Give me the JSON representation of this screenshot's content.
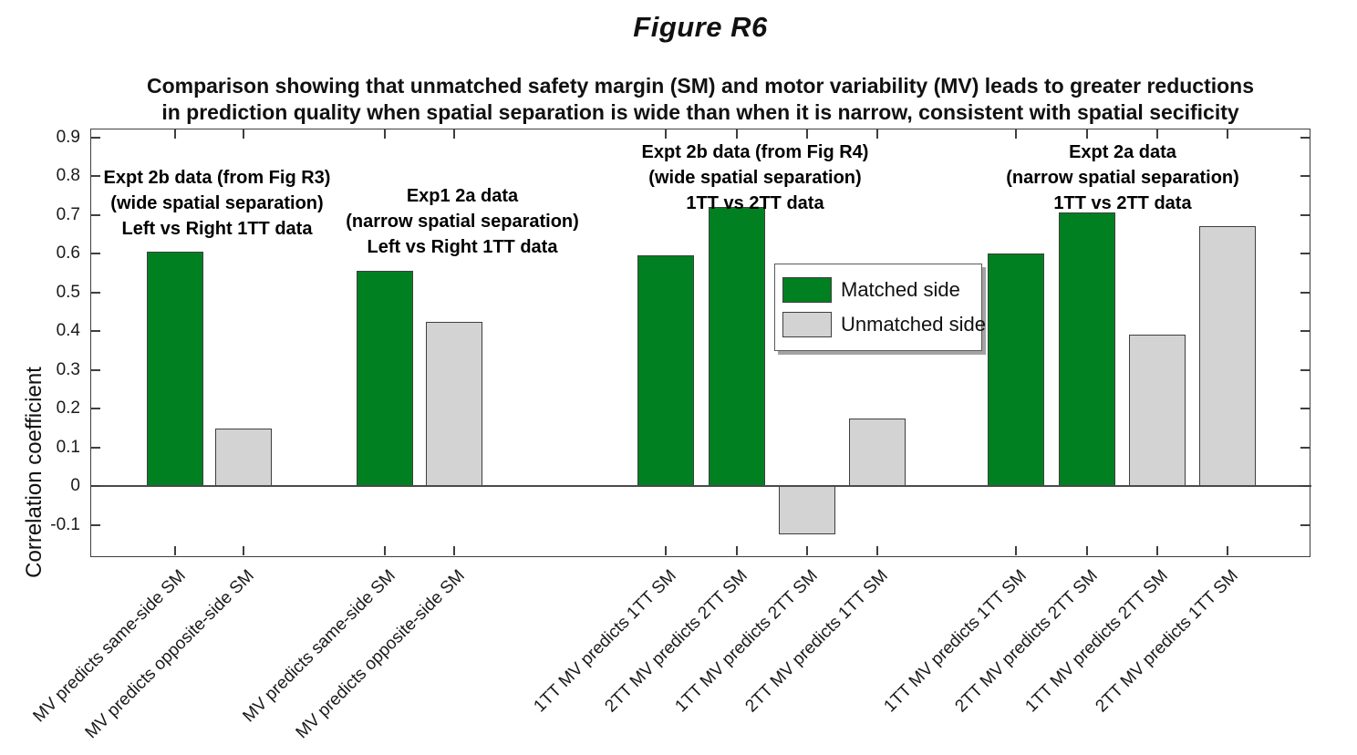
{
  "figure_title": "Figure R6",
  "subtitle": {
    "line1": "Comparison showing that unmatched safety margin (SM) and motor variability (MV) leads to greater reductions",
    "line2": "in prediction quality when spatial separation is wide than when it is narrow, consistent with spatial secificity"
  },
  "y_axis": {
    "label": "Correlation coefficient",
    "tick_labels": [
      "0.9",
      "0.8",
      "0.7",
      "0.6",
      "0.5",
      "0.4",
      "0.3",
      "0.2",
      "0.1",
      "0",
      "-0.1"
    ]
  },
  "legend": {
    "items": [
      {
        "label": "Matched side",
        "color": "#008021"
      },
      {
        "label": "Unmatched side",
        "color": "#d3d3d3"
      }
    ]
  },
  "chart_data": {
    "type": "bar",
    "title": "Figure R6",
    "subtitle": "Comparison showing that unmatched safety margin (SM) and motor variability (MV) leads to greater reductions in prediction quality when spatial separation is wide than when it is narrow, consistent with spatial secificity",
    "xlabel": "",
    "ylabel": "Correlation coefficient",
    "ylim": [
      -0.185,
      0.92
    ],
    "yticks": [
      0.9,
      0.8,
      0.7,
      0.6,
      0.5,
      0.4,
      0.3,
      0.2,
      0.1,
      0,
      -0.1
    ],
    "grid": false,
    "legend_position": "inside-center-right",
    "series_colors": {
      "Matched side": "#008021",
      "Unmatched side": "#d3d3d3"
    },
    "groups": [
      {
        "annotation": [
          "Expt 2b data (from Fig R3)",
          "(wide spatial separation)",
          "Left vs Right 1TT data"
        ],
        "bars": [
          {
            "category": "MV predicts same-side SM",
            "series": "Matched side",
            "value": 0.605
          },
          {
            "category": "MV predicts opposite-side SM",
            "series": "Unmatched side",
            "value": 0.15
          }
        ]
      },
      {
        "annotation": [
          "Exp1 2a data",
          "(narrow spatial separation)",
          "Left vs Right 1TT data"
        ],
        "bars": [
          {
            "category": "MV predicts same-side SM",
            "series": "Matched side",
            "value": 0.555
          },
          {
            "category": "MV predicts opposite-side SM",
            "series": "Unmatched side",
            "value": 0.425
          }
        ]
      },
      {
        "annotation": [
          "Expt 2b data (from Fig R4)",
          "(wide spatial separation)",
          "1TT vs 2TT data"
        ],
        "bars": [
          {
            "category": "1TT MV predicts 1TT SM",
            "series": "Matched side",
            "value": 0.595
          },
          {
            "category": "2TT MV predicts 2TT SM",
            "series": "Matched side",
            "value": 0.72
          },
          {
            "category": "1TT MV predicts 2TT SM",
            "series": "Unmatched side",
            "value": -0.125
          },
          {
            "category": "2TT MV predicts 1TT SM",
            "series": "Unmatched side",
            "value": 0.175
          }
        ]
      },
      {
        "annotation": [
          "Expt 2a data",
          "(narrow spatial separation)",
          "1TT vs 2TT data"
        ],
        "bars": [
          {
            "category": "1TT MV predicts 1TT SM",
            "series": "Matched side",
            "value": 0.6
          },
          {
            "category": "2TT MV predicts 2TT SM",
            "series": "Matched side",
            "value": 0.705
          },
          {
            "category": "1TT MV predicts 2TT SM",
            "series": "Unmatched side",
            "value": 0.39
          },
          {
            "category": "2TT MV predicts 1TT SM",
            "series": "Unmatched side",
            "value": 0.67
          }
        ]
      }
    ]
  }
}
